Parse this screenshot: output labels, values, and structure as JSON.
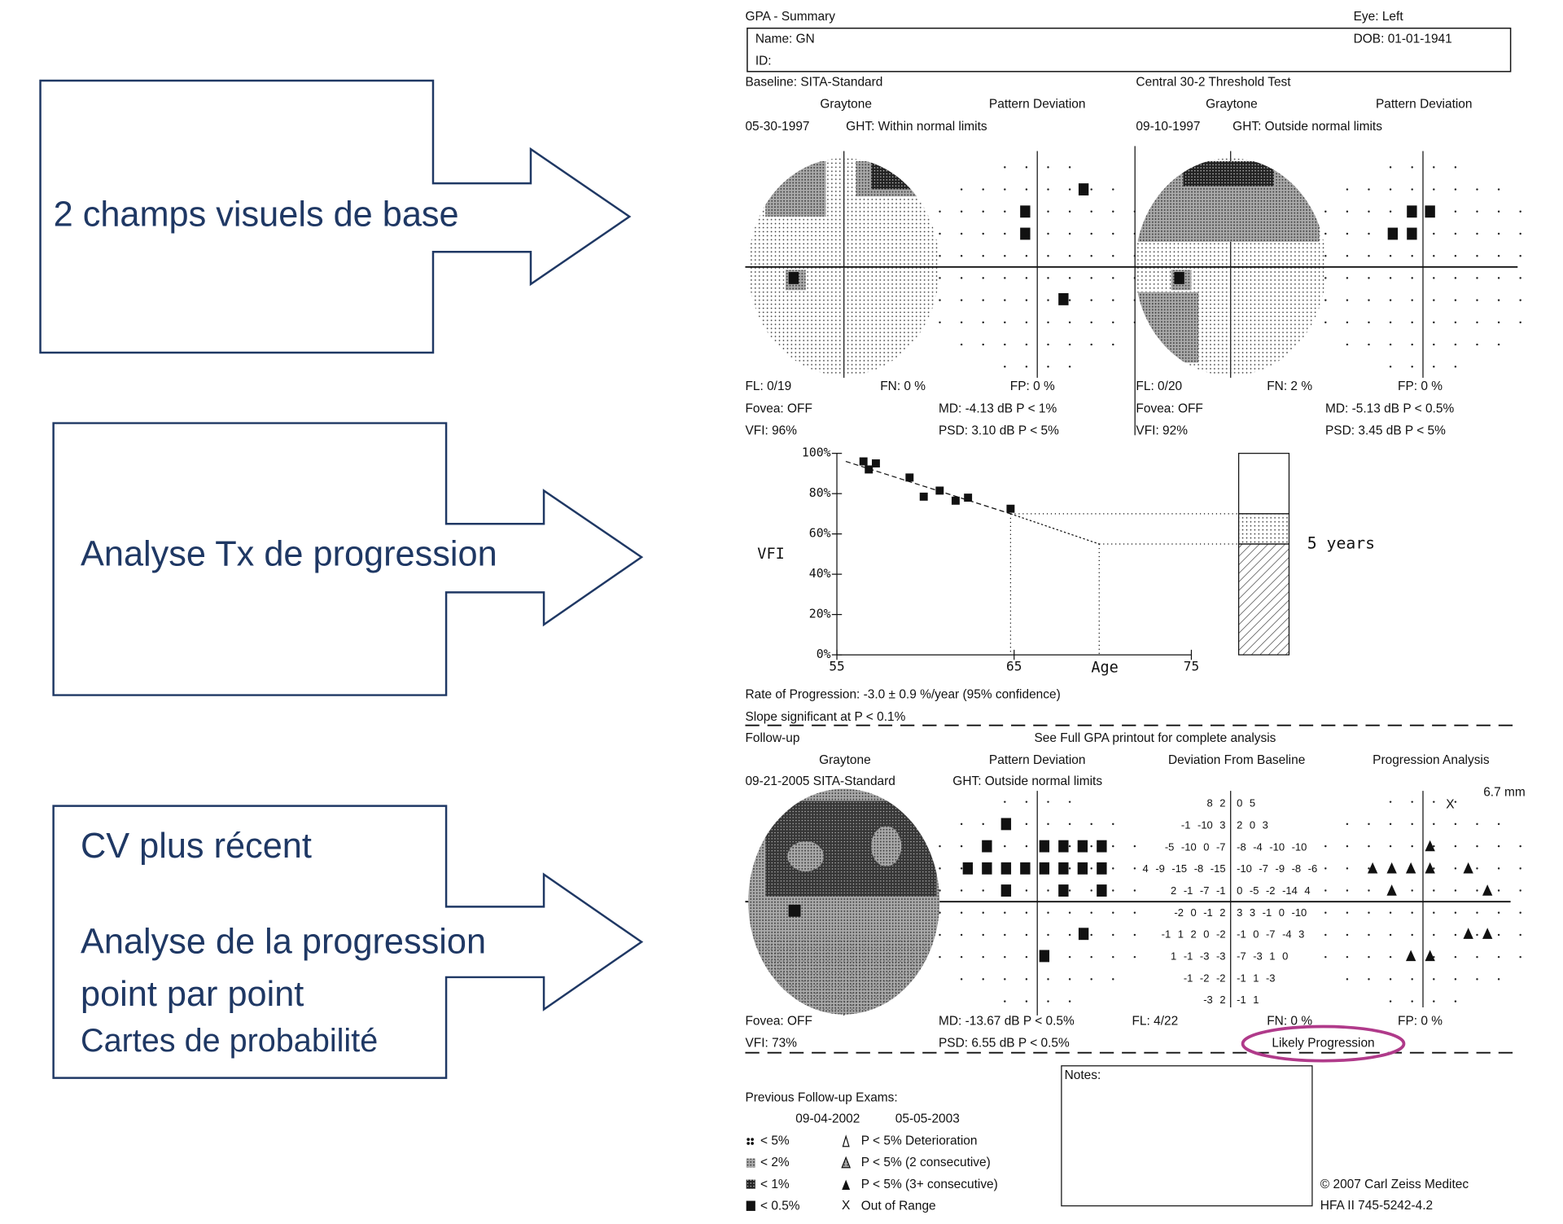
{
  "slide": {
    "arrow_1": "2 champs visuels de base",
    "arrow_2": "Analyse Tx de progression",
    "arrow_3_lines": [
      "CV plus récent",
      "Analyse de la progression",
      "point par point",
      "Cartes de probabilité"
    ]
  },
  "header": {
    "title": "GPA - Summary",
    "eye": "Eye: Left",
    "name": "Name: GN",
    "id": "ID:",
    "dob": "DOB: 01-01-1941"
  },
  "baseline": {
    "label": "Baseline: SITA-Standard",
    "test": "Central 30-2 Threshold Test"
  },
  "exams": [
    {
      "graytone": "Graytone",
      "pattern": "Pattern Deviation",
      "date": "05-30-1997",
      "ght": "GHT: Within normal limits",
      "fl": "FL: 0/19",
      "fn": "FN:  0 %",
      "fp": "FP:  0 %",
      "fovea": "Fovea: OFF",
      "md": "MD:  -4.13 dB  P < 1%",
      "vfi": "VFI:  96%",
      "psd": "PSD:  3.10 dB  P < 5%"
    },
    {
      "graytone": "Graytone",
      "pattern": "Pattern Deviation",
      "date": "09-10-1997",
      "ght": "GHT: Outside normal limits",
      "fl": "FL: 0/20",
      "fn": "FN:  2 %",
      "fp": "FP:  0 %",
      "fovea": "Fovea: OFF",
      "md": "MD:  -5.13 dB  P < 0.5%",
      "vfi": "VFI:  92%",
      "psd": "PSD:  3.45 dB  P < 5%"
    }
  ],
  "vfi_chart": {
    "type": "scatter",
    "y_label": "VFI",
    "x_label": "Age",
    "x": [
      56.5,
      56.8,
      57.2,
      59.1,
      59.9,
      60.8,
      61.7,
      62.4,
      64.8
    ],
    "values": [
      96,
      92,
      95,
      88,
      78.5,
      81.5,
      76.5,
      78,
      72.5
    ],
    "trend": {
      "x": [
        55.5,
        64.8
      ],
      "values": [
        96,
        70
      ]
    },
    "projection": {
      "x": [
        64.8,
        69.8
      ],
      "values": [
        70,
        55
      ]
    },
    "xlim": [
      55,
      75
    ],
    "xticks": [
      55,
      65,
      75
    ],
    "ylim": [
      0,
      100
    ],
    "yticks": [
      {
        "value": 0,
        "label": "0%"
      },
      {
        "value": 20,
        "label": "20%"
      },
      {
        "value": 40,
        "label": "40%"
      },
      {
        "value": 60,
        "label": "60%"
      },
      {
        "value": 80,
        "label": "80%"
      },
      {
        "value": 100,
        "label": "100%"
      }
    ],
    "annotation": "5 years"
  },
  "rate": "Rate of Progression: -3.0 ± 0.9 %/year (95% confidence)",
  "slope": "Slope significant at P < 0.1%",
  "follow_up": {
    "label": "Follow-up",
    "note": "See Full GPA printout for complete analysis",
    "graytone": "Graytone",
    "pattern": "Pattern Deviation",
    "deviation": "Deviation From Baseline",
    "progression": "Progression Analysis",
    "date": "09-21-2005  SITA-Standard",
    "ght": "GHT: Outside normal limits",
    "size": "6.7 mm",
    "fovea": "Fovea: OFF",
    "vfi": "VFI:  73%",
    "md": "MD: -13.67 dB  P < 0.5%",
    "psd": "PSD:  6.55 dB  P < 0.5%",
    "fl": "FL: 4/22",
    "fn": "FN:  0 %",
    "fp": "FP:  0 %",
    "result": "Likely Progression",
    "deviation_rows": [
      [
        "8 2",
        "0 5"
      ],
      [
        "-1 -10 3",
        "2 0 3"
      ],
      [
        "-5 -10 0 -7",
        "-8 -4 -10 -10"
      ],
      [
        "4 -9 -15 -8 -15",
        "-10 -7 -9 -8 -6"
      ],
      [
        "2 -1 -7 -1",
        "0 -5 -2 -14 4"
      ],
      [
        "-2 0 -1 2",
        "3 3 -1 0 -10"
      ],
      [
        "-1 1 2 0 -2",
        "-1 0 -7 -4 3"
      ],
      [
        "1 -1 -3 -3",
        "-7 -3 1 0"
      ],
      [
        "-1 -2 -2",
        "-1 1 -3"
      ],
      [
        "-3 2",
        "-1 1"
      ]
    ]
  },
  "previous": {
    "title": "Previous Follow-up Exams:",
    "dates": [
      "09-04-2002",
      "05-05-2003"
    ]
  },
  "legend": {
    "probability": [
      "< 5%",
      "< 2%",
      "< 1%",
      "< 0.5%"
    ],
    "progression": [
      "P < 5% Deterioration",
      "P < 5% (2 consecutive)",
      "P < 5% (3+ consecutive)",
      "Out of Range"
    ],
    "out_of_range_symbol": "X"
  },
  "notes": "Notes:",
  "copyright": "© 2007 Carl Zeiss Meditec",
  "model": "HFA II 745-5242-4.2"
}
